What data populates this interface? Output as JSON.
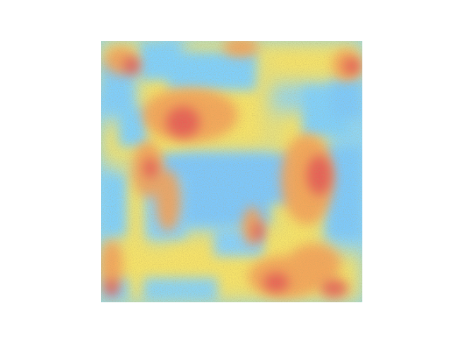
{
  "image": {
    "kind": "heatmap-overlay-on-microscopy-texture",
    "colors": {
      "background": "#ffffff",
      "cold": "#7fcfff",
      "cool": "#8fd8f0",
      "mid": "#f6e36a",
      "warm": "#f4a15a",
      "hot": "#e44b55",
      "texture": "#7a5b1d"
    },
    "axes": {
      "visible": false
    }
  }
}
